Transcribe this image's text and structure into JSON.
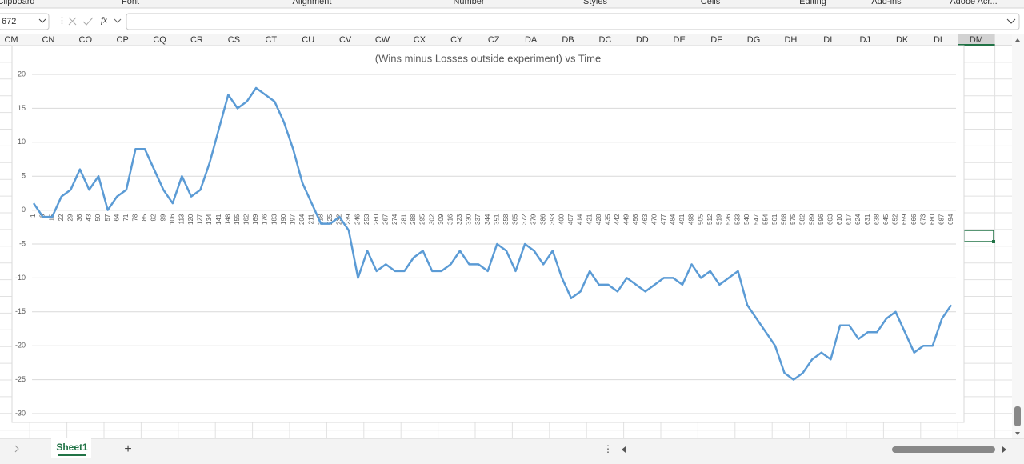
{
  "ui": {
    "ribbon_groups": [
      "Clipboard",
      "Font",
      "Alignment",
      "Number",
      "Styles",
      "Cells",
      "Editing",
      "Add-ins",
      "Adobe Acr..."
    ],
    "name_box": "672",
    "fx": "fx",
    "columns": [
      "CM",
      "CN",
      "CO",
      "CP",
      "CQ",
      "CR",
      "CS",
      "CT",
      "CU",
      "CV",
      "CW",
      "CX",
      "CY",
      "CZ",
      "DA",
      "DB",
      "DC",
      "DD",
      "DE",
      "DF",
      "DG",
      "DH",
      "DI",
      "DJ",
      "DK",
      "DL",
      "DM"
    ],
    "sheet_tab": "Sheet1",
    "add_sheet": "+"
  },
  "chart_data": {
    "type": "line",
    "title": "(Wins minus Losses outside experiment) vs Time",
    "categories": [
      "1",
      "8",
      "15",
      "22",
      "29",
      "36",
      "43",
      "50",
      "57",
      "64",
      "71",
      "78",
      "85",
      "92",
      "99",
      "106",
      "113",
      "120",
      "127",
      "134",
      "141",
      "148",
      "155",
      "162",
      "169",
      "176",
      "183",
      "190",
      "197",
      "204",
      "211",
      "218",
      "225",
      "232",
      "239",
      "246",
      "253",
      "260",
      "267",
      "274",
      "281",
      "288",
      "295",
      "302",
      "309",
      "316",
      "323",
      "330",
      "337",
      "344",
      "351",
      "358",
      "365",
      "372",
      "379",
      "386",
      "393",
      "400",
      "407",
      "414",
      "421",
      "428",
      "435",
      "442",
      "449",
      "456",
      "463",
      "470",
      "477",
      "484",
      "491",
      "498",
      "505",
      "512",
      "519",
      "526",
      "533",
      "540",
      "547",
      "554",
      "561",
      "568",
      "575",
      "582",
      "589",
      "596",
      "603",
      "610",
      "617",
      "624",
      "631",
      "638",
      "645",
      "652",
      "659",
      "666",
      "673",
      "680",
      "687",
      "694"
    ],
    "series": [
      {
        "name": "Wins minus Losses",
        "color": "#5b9bd5",
        "values": [
          1,
          -1,
          -1,
          2,
          3,
          6,
          3,
          5,
          0,
          2,
          3,
          9,
          9,
          6,
          3,
          1,
          5,
          2,
          3,
          7,
          12,
          17,
          15,
          16,
          18,
          17,
          16,
          13,
          9,
          4,
          1,
          -2,
          -2,
          -1,
          -3,
          -10,
          -6,
          -9,
          -8,
          -9,
          -9,
          -7,
          -6,
          -9,
          -9,
          -8,
          -6,
          -8,
          -8,
          -9,
          -5,
          -6,
          -9,
          -5,
          -6,
          -8,
          -6,
          -10,
          -13,
          -12,
          -9,
          -11,
          -11,
          -12,
          -10,
          -11,
          -12,
          -11,
          -10,
          -10,
          -11,
          -8,
          -10,
          -9,
          -11,
          -10,
          -9,
          -14,
          -16,
          -18,
          -20,
          -24,
          -25,
          -24,
          -22,
          -21,
          -22,
          -17,
          -17,
          -19,
          -18,
          -18,
          -16,
          -15,
          -18,
          -21,
          -20,
          -20,
          -16,
          -14
        ]
      }
    ],
    "ylim": [
      -30,
      20
    ],
    "yticks": [
      20,
      15,
      10,
      5,
      0,
      -5,
      -10,
      -15,
      -20,
      -25,
      -30
    ],
    "grid": true
  }
}
